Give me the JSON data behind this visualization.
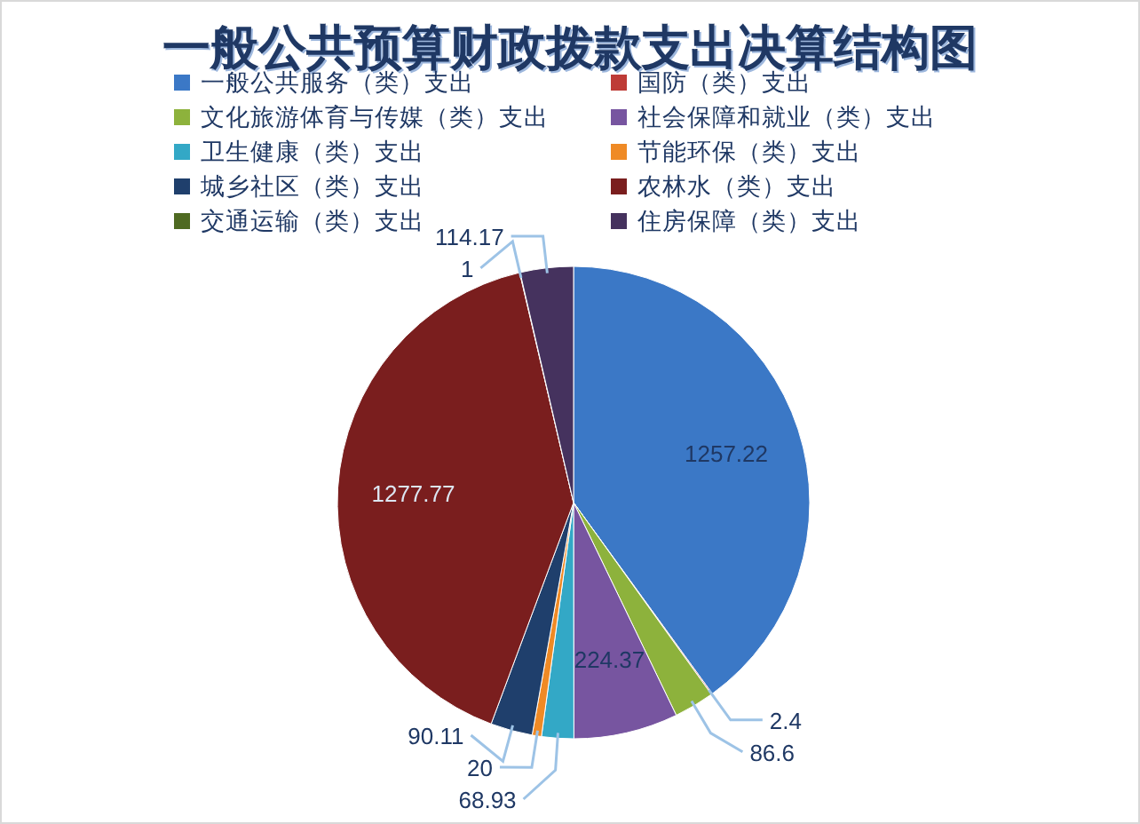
{
  "chart_data": {
    "type": "pie",
    "title": "一般公共预算财政拨款支出决算结构图",
    "categories": [
      "一般公共服务（类）支出",
      "国防（类）支出",
      "文化旅游体育与传媒（类）支出",
      "社会保障和就业（类）支出",
      "卫生健康（类）支出",
      "节能环保（类）支出",
      "城乡社区（类）支出",
      "农林水（类）支出",
      "交通运输（类）支出",
      "住房保障（类）支出"
    ],
    "values": [
      1257.22,
      2.4,
      86.6,
      224.37,
      68.93,
      20,
      90.11,
      1277.77,
      1,
      114.17
    ],
    "colors": [
      "#3b78c6",
      "#be3b36",
      "#8db23c",
      "#7755a0",
      "#33a8c6",
      "#ef8a25",
      "#1f3f6c",
      "#7a1e1e",
      "#4f6a22",
      "#45325e"
    ],
    "data_labels": true,
    "legend": "top"
  }
}
